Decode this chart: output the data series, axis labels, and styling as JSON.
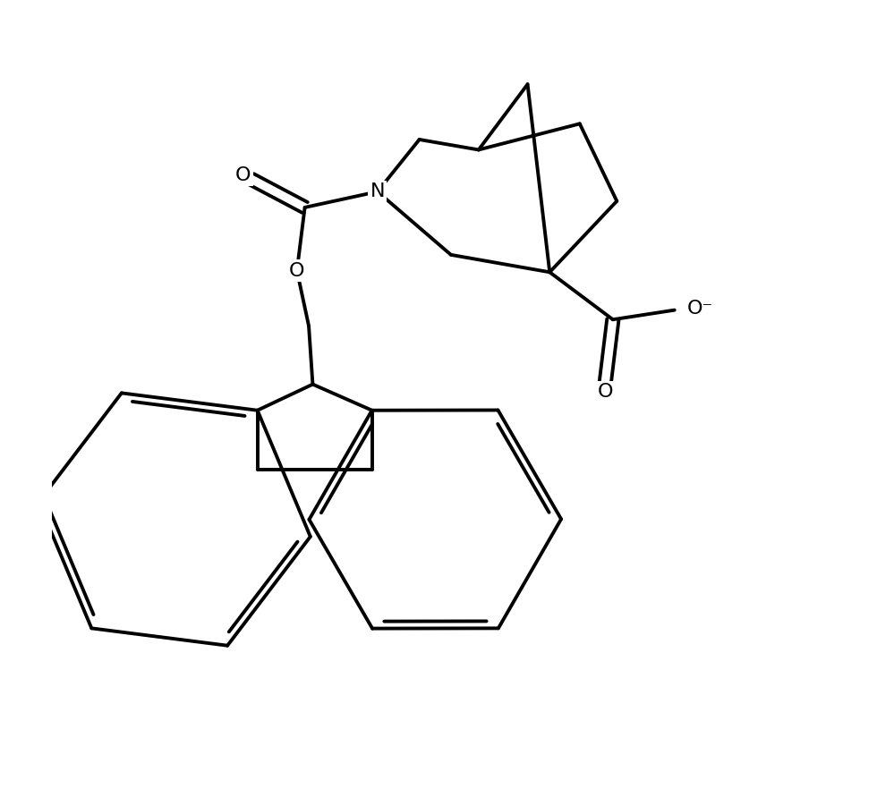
{
  "background_color": "#ffffff",
  "line_color": "#000000",
  "line_width": 2.8,
  "figsize": [
    9.99,
    8.91
  ],
  "dpi": 100,
  "atoms": {
    "N": "N",
    "O": "O",
    "O_neg": "O⁻"
  },
  "fontsize": 16
}
